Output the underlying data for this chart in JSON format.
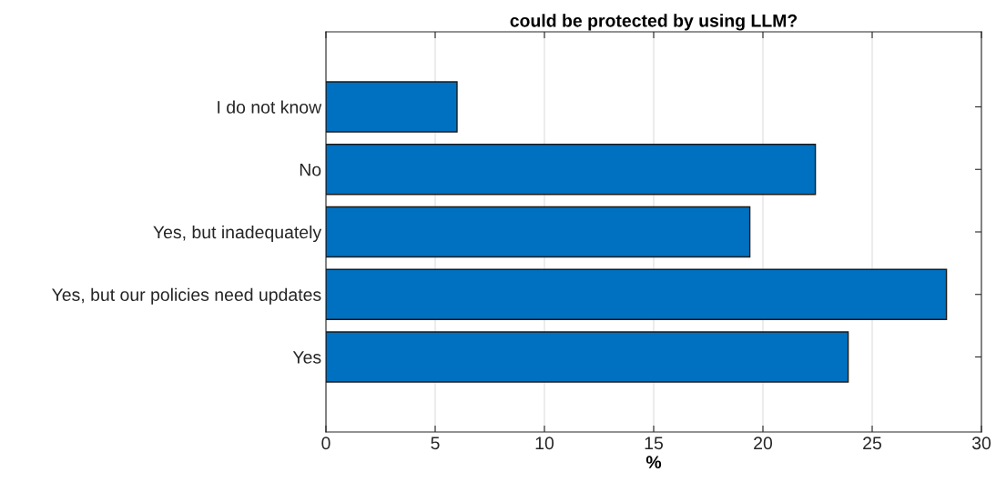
{
  "chart_data": {
    "type": "bar",
    "orientation": "horizontal",
    "title": "could be protected by using LLM?",
    "xlabel": "%",
    "categories": [
      "I do not know",
      "No",
      "Yes, but inadequately",
      "Yes, but our policies need updates",
      "Yes"
    ],
    "values": [
      6.0,
      22.4,
      19.4,
      28.4,
      23.9
    ],
    "color": "#0070c0",
    "xlim": [
      0,
      30
    ],
    "xticks": [
      0,
      5,
      10,
      15,
      20,
      25,
      30
    ],
    "grid": "x"
  }
}
